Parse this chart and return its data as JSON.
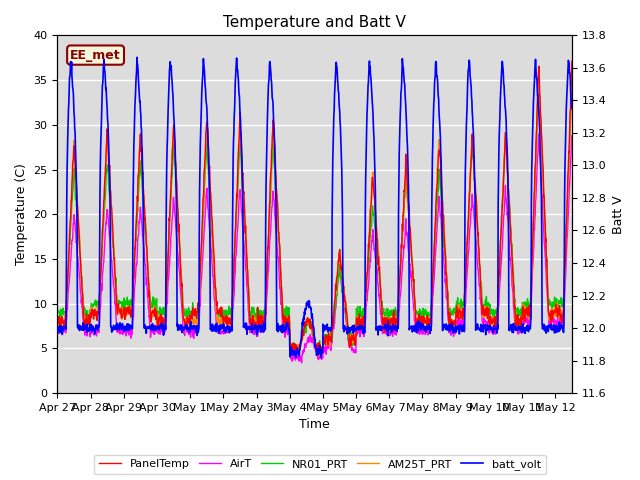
{
  "title": "Temperature and Batt V",
  "xlabel": "Time",
  "ylabel_left": "Temperature (C)",
  "ylabel_right": "Batt V",
  "ylim_left": [
    0,
    40
  ],
  "ylim_right": [
    11.6,
    13.8
  ],
  "bg_color": "#dcdcdc",
  "fig_color": "#ffffff",
  "annotation_text": "EE_met",
  "annotation_color": "#8B0000",
  "annotation_bg": "#f5f5dc",
  "x_tick_labels": [
    "Apr 27",
    "Apr 28",
    "Apr 29",
    "Apr 30",
    "May 1",
    "May 2",
    "May 3",
    "May 4",
    "May 5",
    "May 6",
    "May 7",
    "May 8",
    "May 9",
    "May 10",
    "May 11",
    "May 12"
  ],
  "line_colors": {
    "PanelTemp": "#ff0000",
    "AirT": "#ff00ff",
    "NR01_PRT": "#00cc00",
    "AM25T_PRT": "#ff8800",
    "batt_volt": "#0000ff"
  },
  "legend_labels": [
    "PanelTemp",
    "AirT",
    "NR01_PRT",
    "AM25T_PRT",
    "batt_volt"
  ]
}
